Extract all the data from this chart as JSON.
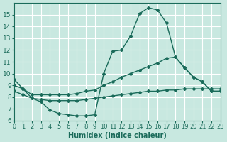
{
  "xlabel": "Humidex (Indice chaleur)",
  "ylabel": "",
  "background_color": "#c8e8e0",
  "grid_color": "#ffffff",
  "line_color": "#1a6b5a",
  "xlim": [
    0,
    23
  ],
  "ylim": [
    6,
    16
  ],
  "xticks": [
    0,
    1,
    2,
    3,
    4,
    5,
    6,
    7,
    8,
    9,
    10,
    11,
    12,
    13,
    14,
    15,
    16,
    17,
    18,
    19,
    20,
    21,
    22,
    23
  ],
  "yticks": [
    6,
    7,
    8,
    9,
    10,
    11,
    12,
    13,
    14,
    15
  ],
  "line1_x": [
    0,
    1,
    2,
    3,
    4,
    5,
    6,
    7,
    8,
    9,
    10,
    11,
    12,
    13,
    14,
    15,
    16,
    17,
    18,
    19,
    20,
    21,
    22,
    23
  ],
  "line1_y": [
    9.5,
    8.7,
    7.9,
    7.6,
    6.9,
    6.6,
    6.5,
    6.4,
    6.4,
    6.5,
    10.0,
    11.9,
    12.0,
    13.2,
    15.1,
    15.6,
    15.4,
    14.3,
    11.4,
    10.5,
    9.7,
    9.3,
    8.5,
    8.5
  ],
  "line2_x": [
    0,
    1,
    2,
    3,
    4,
    5,
    6,
    7,
    8,
    9,
    10,
    11,
    12,
    13,
    14,
    15,
    16,
    17,
    18,
    19,
    20,
    21,
    22,
    23
  ],
  "line2_y": [
    9.0,
    8.7,
    8.2,
    8.2,
    8.2,
    8.2,
    8.2,
    8.3,
    8.5,
    8.6,
    9.0,
    9.3,
    9.7,
    10.0,
    10.3,
    10.6,
    10.9,
    11.3,
    11.4,
    10.5,
    9.7,
    9.3,
    8.5,
    8.5
  ],
  "line3_x": [
    0,
    1,
    2,
    3,
    4,
    5,
    6,
    7,
    8,
    9,
    10,
    11,
    12,
    13,
    14,
    15,
    16,
    17,
    18,
    19,
    20,
    21,
    22,
    23
  ],
  "line3_y": [
    8.5,
    8.2,
    7.9,
    7.8,
    7.7,
    7.7,
    7.7,
    7.7,
    7.8,
    7.9,
    8.0,
    8.1,
    8.2,
    8.3,
    8.4,
    8.5,
    8.5,
    8.6,
    8.6,
    8.7,
    8.7,
    8.7,
    8.7,
    8.7
  ]
}
